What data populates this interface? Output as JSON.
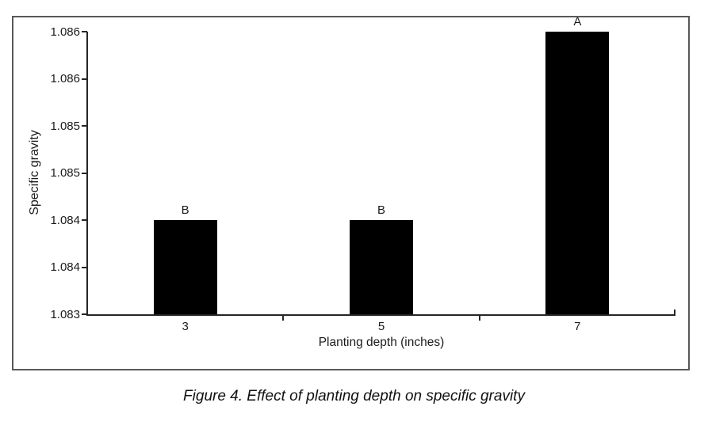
{
  "figure": {
    "caption": "Figure 4. Effect of planting depth on specific gravity"
  },
  "chart_data": {
    "type": "bar",
    "title": "",
    "xlabel": "Planting depth (inches)",
    "ylabel": "Specific gravity",
    "categories": [
      "3",
      "5",
      "7"
    ],
    "values": [
      1.084,
      1.084,
      1.086
    ],
    "bar_labels": [
      "B",
      "B",
      "A"
    ],
    "ylim": [
      1.083,
      1.086
    ],
    "ytick_step": 0.0005,
    "ytick_labels_bottom_to_top": [
      "1.083",
      "1.084",
      "1.084",
      "1.085",
      "1.085",
      "1.086",
      "1.086"
    ],
    "grid": false,
    "legend": null,
    "bar_color": "#000000",
    "axis_color": "#262626",
    "frame_border_color": "#595959",
    "text_color": "#1c1c1c"
  }
}
